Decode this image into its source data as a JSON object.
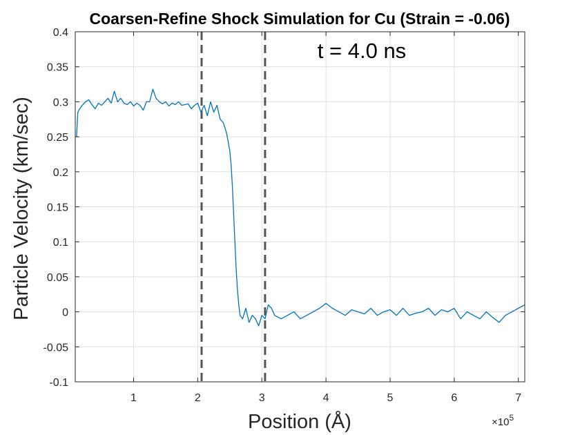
{
  "chart_data": {
    "type": "line",
    "title": "Coarsen-Refine Shock Simulation for Cu (Strain = -0.06)",
    "xlabel": "Position (Å)",
    "ylabel": "Particle Velocity (km/sec)",
    "x_multiplier_label": "×10",
    "x_multiplier_exp": "5",
    "annotation": "t = 4.0 ns",
    "xlim": [
      0.09,
      7.1
    ],
    "ylim": [
      -0.1,
      0.4
    ],
    "x_ticks": [
      1,
      2,
      3,
      4,
      5,
      6,
      7
    ],
    "y_ticks": [
      -0.1,
      -0.05,
      0,
      0.05,
      0.1,
      0.15,
      0.2,
      0.25,
      0.3,
      0.35,
      0.4
    ],
    "x_tick_labels": [
      "1",
      "2",
      "3",
      "4",
      "5",
      "6",
      "7"
    ],
    "y_tick_labels": [
      "-0.1",
      "-0.05",
      "0",
      "0.05",
      "0.1",
      "0.15",
      "0.2",
      "0.25",
      "0.3",
      "0.35",
      "0.4"
    ],
    "grid": true,
    "vlines": [
      2.06,
      3.05
    ],
    "series": [
      {
        "color": "#0072BD",
        "x": [
          0.11,
          0.13,
          0.16,
          0.2,
          0.25,
          0.3,
          0.35,
          0.4,
          0.45,
          0.5,
          0.55,
          0.6,
          0.65,
          0.7,
          0.75,
          0.8,
          0.85,
          0.9,
          0.95,
          1.0,
          1.05,
          1.1,
          1.15,
          1.2,
          1.25,
          1.3,
          1.35,
          1.4,
          1.45,
          1.5,
          1.55,
          1.6,
          1.65,
          1.7,
          1.75,
          1.8,
          1.85,
          1.9,
          1.95,
          2.0,
          2.05,
          2.1,
          2.15,
          2.2,
          2.25,
          2.3,
          2.35,
          2.4,
          2.45,
          2.5,
          2.52,
          2.54,
          2.56,
          2.58,
          2.6,
          2.62,
          2.64,
          2.66,
          2.7,
          2.75,
          2.8,
          2.85,
          2.9,
          2.95,
          3.0,
          3.05,
          3.1,
          3.15,
          3.2,
          3.3,
          3.4,
          3.5,
          3.6,
          3.7,
          3.8,
          3.9,
          4.0,
          4.1,
          4.2,
          4.3,
          4.4,
          4.5,
          4.6,
          4.7,
          4.8,
          4.9,
          5.0,
          5.1,
          5.2,
          5.3,
          5.4,
          5.5,
          5.6,
          5.7,
          5.8,
          5.9,
          6.0,
          6.1,
          6.2,
          6.3,
          6.4,
          6.5,
          6.6,
          6.7,
          6.8,
          6.9,
          7.0,
          7.1
        ],
        "y": [
          0.25,
          0.285,
          0.29,
          0.295,
          0.3,
          0.303,
          0.296,
          0.29,
          0.298,
          0.295,
          0.3,
          0.305,
          0.298,
          0.315,
          0.3,
          0.305,
          0.298,
          0.296,
          0.3,
          0.294,
          0.298,
          0.295,
          0.288,
          0.3,
          0.3,
          0.318,
          0.305,
          0.3,
          0.297,
          0.3,
          0.294,
          0.298,
          0.296,
          0.3,
          0.295,
          0.296,
          0.297,
          0.29,
          0.295,
          0.298,
          0.285,
          0.295,
          0.28,
          0.3,
          0.285,
          0.295,
          0.275,
          0.27,
          0.255,
          0.23,
          0.21,
          0.18,
          0.14,
          0.1,
          0.06,
          0.03,
          0.01,
          -0.005,
          -0.01,
          0.005,
          -0.015,
          -0.005,
          -0.01,
          -0.02,
          -0.005,
          -0.01,
          0.01,
          0.005,
          -0.005,
          -0.01,
          -0.005,
          0.0,
          -0.01,
          -0.005,
          0.0,
          0.005,
          0.012,
          0.005,
          0.0,
          -0.005,
          0.003,
          0.0,
          -0.003,
          0.005,
          -0.005,
          0.0,
          0.003,
          -0.005,
          0.005,
          -0.005,
          -0.002,
          0.0,
          0.005,
          -0.005,
          0.003,
          0.0,
          0.005,
          -0.01,
          0.0,
          -0.005,
          -0.01,
          0.0,
          -0.008,
          -0.015,
          -0.005,
          0.0,
          0.005,
          0.01
        ]
      }
    ]
  }
}
